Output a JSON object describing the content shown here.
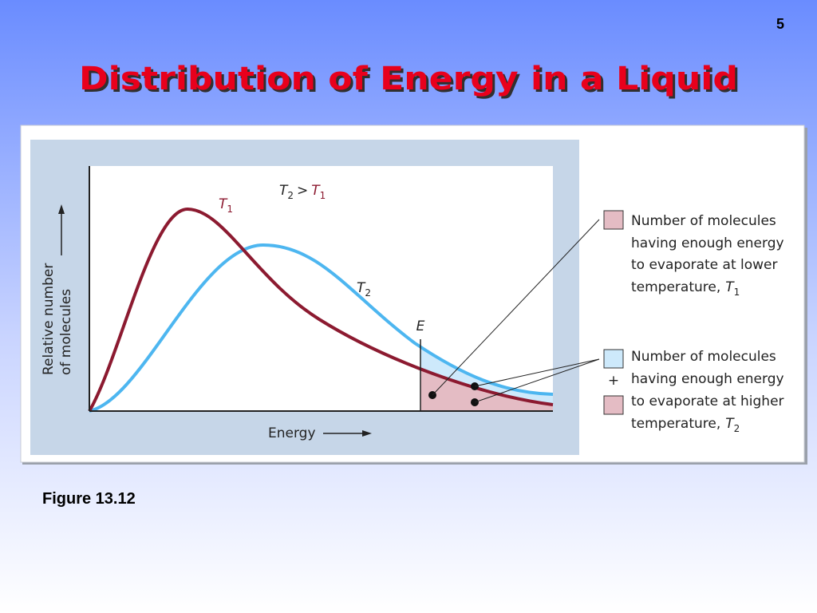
{
  "slide_number": "5",
  "title": "Distribution of Energy in a Liquid",
  "caption": "Figure 13.12",
  "figure": {
    "y_axis_label": [
      "Relative number",
      "of molecules"
    ],
    "x_axis_label": "Energy",
    "comparison": {
      "left": {
        "symbol": "T",
        "subscript": "2"
      },
      "operator": ">",
      "right": {
        "symbol": "T",
        "subscript": "1"
      }
    },
    "curve_labels": [
      {
        "symbol": "T",
        "subscript": "1"
      },
      {
        "symbol": "T",
        "subscript": "2"
      }
    ],
    "threshold_label": "E",
    "legend": [
      {
        "lines": [
          "Number of molecules",
          "having enough energy",
          "to evaporate at lower",
          "temperature,"
        ],
        "symbol": "T",
        "subscript": "1"
      },
      {
        "lines": [
          "Number of molecules",
          "having enough energy",
          "to evaporate at higher",
          "temperature,"
        ],
        "symbol": "T",
        "subscript": "2"
      }
    ],
    "plus": "+"
  }
}
